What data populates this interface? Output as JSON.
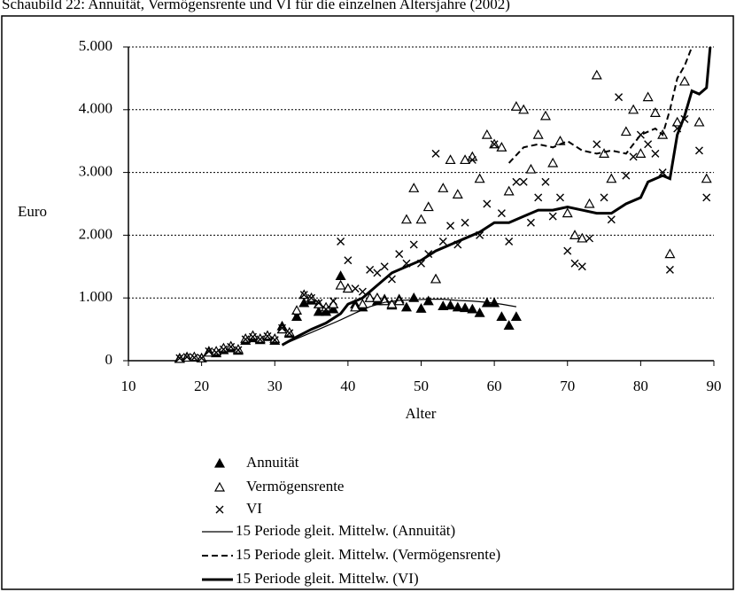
{
  "chart_data": {
    "type": "scatter",
    "title": "Schaubild 22: Annuität, Vermögensrente und VI für die einzelnen Altersjahre (2002)",
    "x_label": "Alter",
    "y_label": "Euro",
    "xlim": [
      10,
      90
    ],
    "xticks": [
      10,
      20,
      30,
      40,
      50,
      60,
      70,
      80,
      90
    ],
    "ylim": [
      0,
      5000
    ],
    "yticks": [
      0,
      {
        "value": 1000,
        "label": "1.000"
      },
      {
        "value": 2000,
        "label": "2.000"
      },
      {
        "value": 3000,
        "label": "3.000"
      },
      {
        "value": 4000,
        "label": "4.000"
      },
      {
        "value": 5000,
        "label": "5.000"
      }
    ],
    "grid": true,
    "series": [
      {
        "name": "Annuität",
        "color": "#000000",
        "marker": "triangle-filled",
        "x": [
          17,
          18,
          19,
          20,
          21,
          22,
          23,
          24,
          25,
          26,
          27,
          28,
          29,
          30,
          31,
          32,
          33,
          34,
          35,
          36,
          37,
          38,
          39,
          40,
          41,
          42,
          43,
          44,
          45,
          46,
          47,
          48,
          49,
          50,
          51,
          52,
          53,
          54,
          55,
          56,
          57,
          58,
          59,
          60,
          61,
          62,
          63
        ],
        "values": [
          40,
          60,
          50,
          40,
          150,
          120,
          170,
          200,
          160,
          320,
          360,
          330,
          380,
          320,
          550,
          430,
          700,
          920,
          960,
          780,
          780,
          820,
          1350,
          1150,
          900,
          850,
          1000,
          950,
          980,
          880,
          980,
          850,
          1000,
          830,
          950,
          1300,
          870,
          880,
          850,
          840,
          820,
          760,
          920,
          920,
          700,
          560,
          700
        ]
      },
      {
        "name": "Vermögensrente",
        "color": "#000000",
        "marker": "triangle-open",
        "x": [
          17,
          18,
          19,
          20,
          21,
          22,
          23,
          24,
          25,
          26,
          27,
          28,
          29,
          30,
          31,
          32,
          33,
          34,
          35,
          36,
          37,
          38,
          39,
          40,
          41,
          42,
          43,
          44,
          45,
          46,
          47,
          48,
          49,
          50,
          51,
          52,
          53,
          54,
          55,
          56,
          57,
          58,
          59,
          60,
          61,
          62,
          63,
          64,
          65,
          66,
          67,
          68,
          69,
          70,
          71,
          72,
          73,
          74,
          75,
          76,
          78,
          79,
          80,
          81,
          82,
          83,
          84,
          85,
          86,
          88,
          89
        ],
        "values": [
          30,
          50,
          60,
          40,
          130,
          150,
          200,
          230,
          180,
          350,
          400,
          350,
          400,
          350,
          500,
          450,
          800,
          1050,
          1000,
          900,
          850,
          900,
          1200,
          1150,
          850,
          900,
          1000,
          1000,
          950,
          900,
          950,
          2250,
          2750,
          2250,
          2450,
          1300,
          2750,
          3200,
          2650,
          3200,
          3250,
          2900,
          3600,
          3450,
          3400,
          2700,
          4050,
          4000,
          3050,
          3600,
          3900,
          3150,
          3500,
          2350,
          2000,
          1950,
          2500,
          4550,
          3300,
          2900,
          3650,
          4000,
          3300,
          4200,
          3950,
          3600,
          1700,
          3800,
          4450,
          3800,
          2900
        ]
      },
      {
        "name": "VI",
        "color": "#000000",
        "marker": "cross",
        "x": [
          17,
          18,
          19,
          20,
          21,
          22,
          23,
          24,
          25,
          26,
          27,
          28,
          29,
          30,
          31,
          32,
          33,
          34,
          35,
          36,
          37,
          38,
          39,
          40,
          41,
          42,
          43,
          44,
          45,
          46,
          47,
          48,
          49,
          50,
          51,
          52,
          53,
          54,
          55,
          56,
          57,
          58,
          59,
          60,
          61,
          62,
          63,
          64,
          65,
          66,
          67,
          68,
          69,
          70,
          71,
          72,
          73,
          74,
          75,
          76,
          77,
          78,
          79,
          80,
          81,
          82,
          83,
          84,
          85,
          86,
          88,
          89
        ],
        "values": [
          40,
          60,
          50,
          40,
          150,
          130,
          180,
          220,
          170,
          340,
          380,
          340,
          390,
          330,
          520,
          440,
          700,
          1050,
          1000,
          920,
          820,
          950,
          1900,
          1600,
          1150,
          1100,
          1450,
          1400,
          1500,
          1300,
          1700,
          1550,
          1850,
          1550,
          1700,
          3300,
          1900,
          2150,
          1850,
          2200,
          3200,
          2000,
          2500,
          3450,
          2350,
          1900,
          2850,
          2850,
          2200,
          2600,
          2850,
          2300,
          2600,
          1750,
          1550,
          1500,
          1950,
          3450,
          2600,
          2250,
          4200,
          2950,
          3250,
          3600,
          3450,
          3300,
          3000,
          1450,
          3700,
          3850,
          3350,
          2600
        ]
      },
      {
        "name": "15 Periode gleit. Mittelw. (Annuität)",
        "color": "#000000",
        "line": "thin",
        "x": [
          31,
          33,
          35,
          37,
          39,
          41,
          43,
          45,
          47,
          49,
          51,
          53,
          55,
          57,
          59,
          61,
          63
        ],
        "values": [
          250,
          350,
          450,
          550,
          650,
          760,
          860,
          930,
          960,
          970,
          980,
          980,
          960,
          950,
          930,
          900,
          860
        ]
      },
      {
        "name": "15 Periode gleit. Mittelw. (Vermögensrente)",
        "color": "#000000",
        "line": "dashed",
        "x": [
          62,
          64,
          66,
          68,
          70,
          72,
          74,
          76,
          78,
          80,
          82,
          83,
          84,
          85,
          86,
          87
        ],
        "values": [
          3150,
          3400,
          3450,
          3400,
          3500,
          3350,
          3300,
          3350,
          3300,
          3600,
          3700,
          3600,
          4000,
          4500,
          4700,
          5000
        ]
      },
      {
        "name": "15 Periode gleit. Mittelw. (VI)",
        "color": "#000000",
        "line": "thick",
        "x": [
          31,
          33,
          35,
          37,
          39,
          40,
          42,
          44,
          46,
          48,
          50,
          52,
          54,
          56,
          58,
          60,
          62,
          64,
          66,
          68,
          70,
          72,
          74,
          76,
          78,
          80,
          81,
          83,
          84,
          85,
          86,
          87,
          88,
          89,
          89.5
        ],
        "values": [
          250,
          380,
          500,
          600,
          750,
          900,
          1000,
          1200,
          1400,
          1500,
          1600,
          1750,
          1850,
          1950,
          2050,
          2200,
          2200,
          2300,
          2400,
          2400,
          2450,
          2400,
          2350,
          2350,
          2500,
          2600,
          2850,
          2950,
          2900,
          3600,
          3900,
          4300,
          4250,
          4350,
          5000
        ]
      }
    ]
  }
}
